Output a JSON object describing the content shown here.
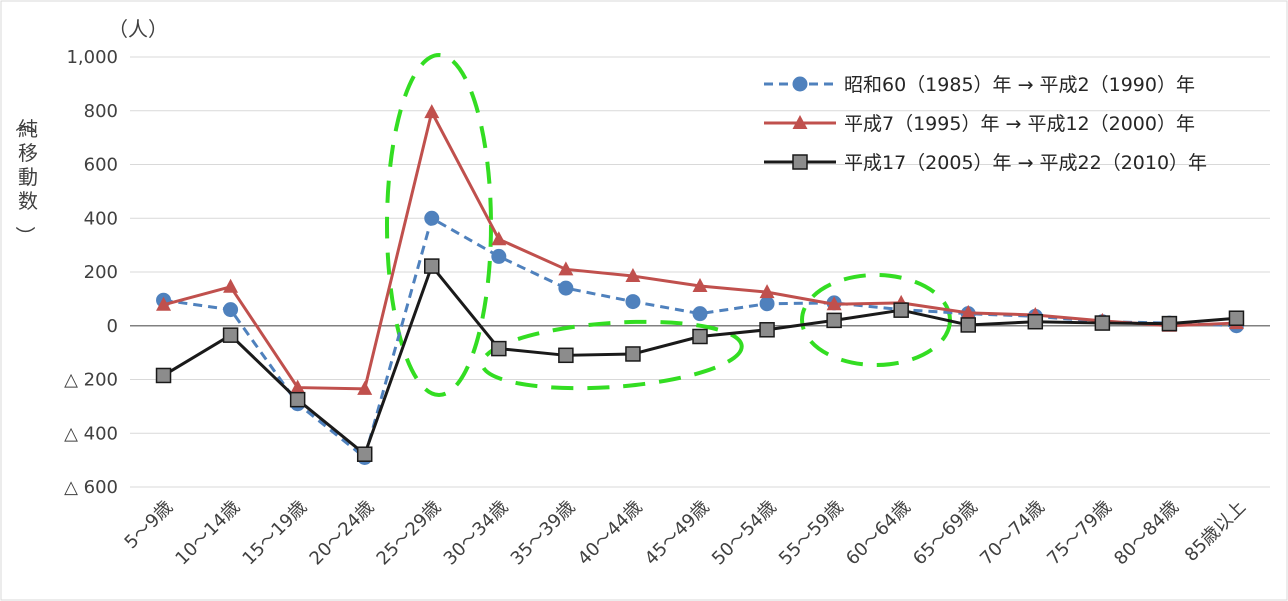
{
  "chart_data": {
    "type": "line",
    "unit_label": "（人）",
    "ylabel": "（純移動数）",
    "ylim": [
      -600,
      1000
    ],
    "yticks": [
      {
        "value": 1000,
        "label": "1,000"
      },
      {
        "value": 800,
        "label": "800"
      },
      {
        "value": 600,
        "label": "600"
      },
      {
        "value": 400,
        "label": "400"
      },
      {
        "value": 200,
        "label": "200"
      },
      {
        "value": 0,
        "label": "0"
      },
      {
        "value": -200,
        "label": "△ 200"
      },
      {
        "value": -400,
        "label": "△ 400"
      },
      {
        "value": -600,
        "label": "△ 600"
      }
    ],
    "categories": [
      "5～9歳",
      "10～14歳",
      "15～19歳",
      "20～24歳",
      "25～29歳",
      "30～34歳",
      "35～39歳",
      "40～44歳",
      "45～49歳",
      "50～54歳",
      "55～59歳",
      "60～64歳",
      "65～69歳",
      "70～74歳",
      "75～79歳",
      "80～84歳",
      "85歳以上"
    ],
    "grid": true,
    "legend_position": "top-right",
    "series": [
      {
        "name": "昭和60（1985）年 → 平成2（1990）年",
        "color": "#4F81BD",
        "marker": "circle",
        "dash": "dashed",
        "values": [
          95,
          60,
          -290,
          -490,
          400,
          258,
          140,
          90,
          45,
          82,
          85,
          60,
          45,
          35,
          15,
          10,
          0
        ]
      },
      {
        "name": "平成7（1995）年 → 平成12（2000）年",
        "color": "#C0504D",
        "marker": "triangle",
        "dash": "solid",
        "values": [
          78,
          145,
          -230,
          -235,
          795,
          322,
          210,
          185,
          148,
          125,
          80,
          85,
          48,
          40,
          18,
          0,
          10
        ]
      },
      {
        "name": "平成17（2005）年 → 平成22（2010）年",
        "color": "#1a1a1a",
        "marker": "square",
        "dash": "solid",
        "values": [
          -185,
          -35,
          -275,
          -478,
          222,
          -85,
          -110,
          -105,
          -40,
          -15,
          20,
          58,
          3,
          15,
          10,
          8,
          28
        ]
      }
    ],
    "annotations": [
      {
        "shape": "dashed-ellipse",
        "color": "#33dd22"
      },
      {
        "shape": "dashed-ellipse",
        "color": "#33dd22"
      },
      {
        "shape": "dashed-ellipse",
        "color": "#33dd22"
      }
    ]
  }
}
